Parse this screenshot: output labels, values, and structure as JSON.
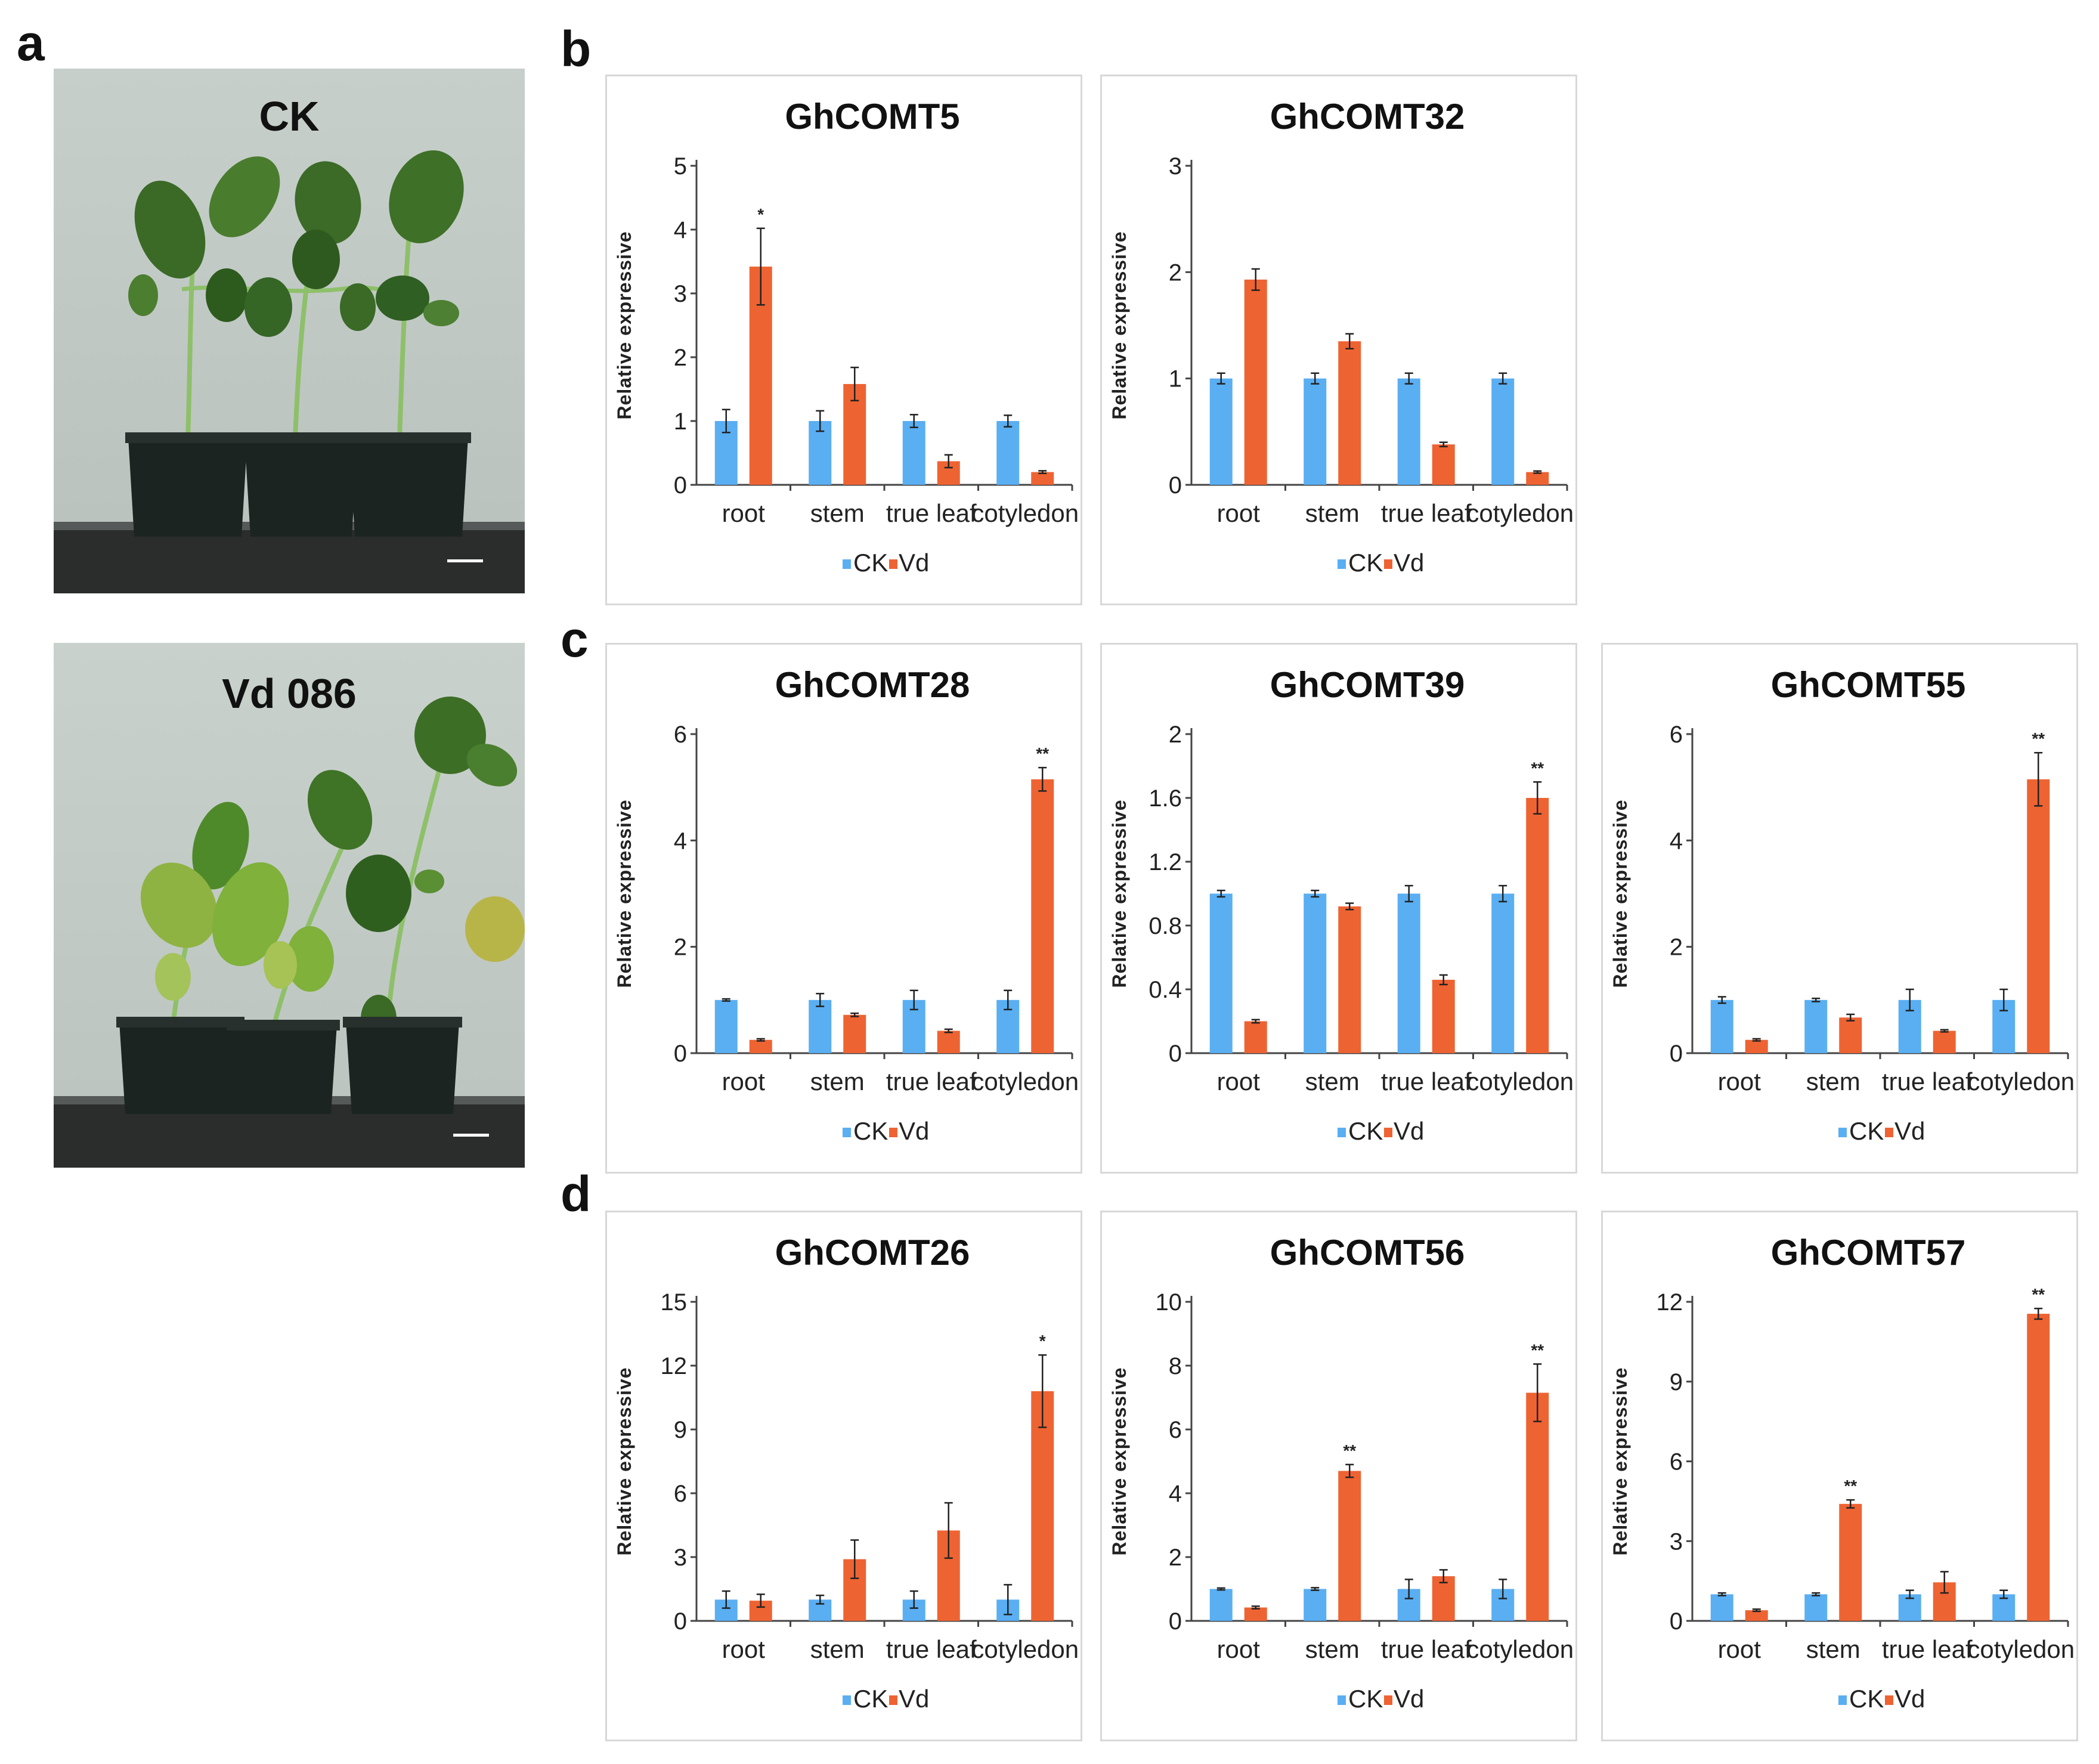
{
  "panels": {
    "a": "a",
    "b": "b",
    "c": "c",
    "d": "d"
  },
  "photos": [
    {
      "label": "CK",
      "condition": "healthy"
    },
    {
      "label": "Vd 086",
      "condition": "infected"
    }
  ],
  "legend": {
    "ck": "CK",
    "vd": "Vd"
  },
  "colors": {
    "ck": "#5aaef2",
    "vd": "#ee6332",
    "axis": "#444444"
  },
  "chart_data": [
    {
      "type": "bar",
      "title": "GhCOMT5",
      "ylabel": "Relative expressive",
      "categories": [
        "root",
        "stem",
        "true leaf",
        "cotyledon"
      ],
      "ylim": [
        0,
        5
      ],
      "yticks": [
        "0",
        "1",
        "2",
        "3",
        "4",
        "5"
      ],
      "series": [
        {
          "name": "CK",
          "values": [
            1.0,
            1.0,
            1.0,
            1.0
          ],
          "errors": [
            0.18,
            0.16,
            0.1,
            0.09
          ]
        },
        {
          "name": "Vd",
          "values": [
            3.42,
            1.58,
            0.37,
            0.2
          ],
          "errors": [
            0.6,
            0.26,
            0.1,
            0.02
          ]
        }
      ],
      "significance": [
        "*",
        "",
        "",
        ""
      ]
    },
    {
      "type": "bar",
      "title": "GhCOMT32",
      "ylabel": "Relative expressive",
      "categories": [
        "root",
        "stem",
        "true leaf",
        "cotyledon"
      ],
      "ylim": [
        0,
        3
      ],
      "yticks": [
        "0",
        "1",
        "2",
        "3"
      ],
      "series": [
        {
          "name": "CK",
          "values": [
            1.0,
            1.0,
            1.0,
            1.0
          ],
          "errors": [
            0.05,
            0.05,
            0.05,
            0.05
          ]
        },
        {
          "name": "Vd",
          "values": [
            1.93,
            1.35,
            0.38,
            0.12
          ],
          "errors": [
            0.1,
            0.07,
            0.02,
            0.01
          ]
        }
      ],
      "significance": [
        "",
        "",
        "",
        ""
      ]
    },
    {
      "type": "bar",
      "title": "GhCOMT28",
      "ylabel": "Relative expressive",
      "categories": [
        "root",
        "stem",
        "true leaf",
        "cotyledon"
      ],
      "ylim": [
        0,
        6
      ],
      "yticks": [
        "0",
        "2",
        "4",
        "6"
      ],
      "series": [
        {
          "name": "CK",
          "values": [
            1.0,
            1.0,
            1.0,
            1.0
          ],
          "errors": [
            0.02,
            0.12,
            0.18,
            0.18
          ]
        },
        {
          "name": "Vd",
          "values": [
            0.25,
            0.72,
            0.42,
            5.15
          ],
          "errors": [
            0.02,
            0.03,
            0.03,
            0.22
          ]
        }
      ],
      "significance": [
        "",
        "",
        "",
        "**"
      ]
    },
    {
      "type": "bar",
      "title": "GhCOMT39",
      "ylabel": "Relative expressive",
      "categories": [
        "root",
        "stem",
        "true leaf",
        "cotyledon"
      ],
      "ylim": [
        0,
        2
      ],
      "yticks": [
        "0",
        "0.4",
        "0.8",
        "1.2",
        "1.6",
        "2"
      ],
      "series": [
        {
          "name": "CK",
          "values": [
            1.0,
            1.0,
            1.0,
            1.0
          ],
          "errors": [
            0.02,
            0.02,
            0.05,
            0.05
          ]
        },
        {
          "name": "Vd",
          "values": [
            0.2,
            0.92,
            0.46,
            1.6
          ],
          "errors": [
            0.01,
            0.02,
            0.03,
            0.1
          ]
        }
      ],
      "significance": [
        "",
        "",
        "",
        "**"
      ]
    },
    {
      "type": "bar",
      "title": "GhCOMT55",
      "ylabel": "Relative expressive",
      "categories": [
        "root",
        "stem",
        "true leaf",
        "cotyledon"
      ],
      "ylim": [
        0,
        6
      ],
      "yticks": [
        "0",
        "2",
        "4",
        "6"
      ],
      "series": [
        {
          "name": "CK",
          "values": [
            1.0,
            1.0,
            1.0,
            1.0
          ],
          "errors": [
            0.06,
            0.03,
            0.2,
            0.2
          ]
        },
        {
          "name": "Vd",
          "values": [
            0.25,
            0.67,
            0.42,
            5.15
          ],
          "errors": [
            0.02,
            0.06,
            0.02,
            0.5
          ]
        }
      ],
      "significance": [
        "",
        "",
        "",
        "**"
      ]
    },
    {
      "type": "bar",
      "title": "GhCOMT26",
      "ylabel": "Relative expressive",
      "categories": [
        "root",
        "stem",
        "true leaf",
        "cotyledon"
      ],
      "ylim": [
        0,
        15
      ],
      "yticks": [
        "0",
        "3",
        "6",
        "9",
        "12",
        "15"
      ],
      "series": [
        {
          "name": "CK",
          "values": [
            1.0,
            1.0,
            1.0,
            1.0
          ],
          "errors": [
            0.4,
            0.2,
            0.4,
            0.7
          ]
        },
        {
          "name": "Vd",
          "values": [
            0.95,
            2.9,
            4.25,
            10.8
          ],
          "errors": [
            0.3,
            0.9,
            1.3,
            1.7
          ]
        }
      ],
      "significance": [
        "",
        "",
        "",
        "*"
      ]
    },
    {
      "type": "bar",
      "title": "GhCOMT56",
      "ylabel": "Relative expressive",
      "categories": [
        "root",
        "stem",
        "true leaf",
        "cotyledon"
      ],
      "ylim": [
        0,
        10
      ],
      "yticks": [
        "0",
        "2",
        "4",
        "6",
        "8",
        "10"
      ],
      "series": [
        {
          "name": "CK",
          "values": [
            1.0,
            1.0,
            1.0,
            1.0
          ],
          "errors": [
            0.03,
            0.04,
            0.3,
            0.3
          ]
        },
        {
          "name": "Vd",
          "values": [
            0.42,
            4.7,
            1.4,
            7.15
          ],
          "errors": [
            0.04,
            0.2,
            0.2,
            0.9
          ]
        }
      ],
      "significance": [
        "",
        "**",
        "",
        "**"
      ]
    },
    {
      "type": "bar",
      "title": "GhCOMT57",
      "ylabel": "Relative expressive",
      "categories": [
        "root",
        "stem",
        "true leaf",
        "cotyledon"
      ],
      "ylim": [
        0,
        12
      ],
      "yticks": [
        "0",
        "3",
        "6",
        "9",
        "12"
      ],
      "series": [
        {
          "name": "CK",
          "values": [
            1.0,
            1.0,
            1.0,
            1.0
          ],
          "errors": [
            0.05,
            0.05,
            0.15,
            0.15
          ]
        },
        {
          "name": "Vd",
          "values": [
            0.4,
            4.4,
            1.45,
            11.55
          ],
          "errors": [
            0.04,
            0.15,
            0.4,
            0.2
          ]
        }
      ],
      "significance": [
        "",
        "**",
        "",
        "**"
      ]
    }
  ]
}
